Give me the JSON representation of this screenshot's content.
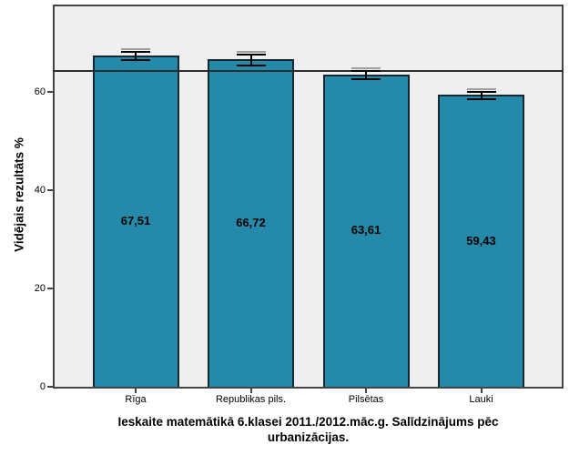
{
  "chart_data": {
    "type": "bar",
    "categories": [
      "Rīga",
      "Republikas pils.",
      "Pilsētas",
      "Lauki"
    ],
    "values": [
      67.51,
      66.72,
      63.61,
      59.43
    ],
    "value_labels": [
      "67,51",
      "66,72",
      "63,61",
      "59,43"
    ],
    "error_bars": [
      0.9,
      1.2,
      0.9,
      0.8
    ],
    "reference_line": 64.3,
    "title": "Ieskaite matemātikā 6.klasei 2011./2012.māc.g. Salīdzinājums pēc urbanizācijas.",
    "title_lines": [
      "Ieskaite matemātikā 6.klasei 2011./2012.māc.g. Salīdzinājums pēc",
      "urbanizācijas."
    ],
    "xlabel": "",
    "ylabel": "Vidējais rezultāts %",
    "yticks": [
      0,
      20,
      40,
      60
    ],
    "ytick_labels": [
      "0",
      "20",
      "40",
      "60"
    ],
    "ylim": [
      0,
      77.5
    ],
    "grid": false,
    "legend": "none",
    "colors": {
      "bar_fill": "#2589A9",
      "bar_border": "#17262E",
      "plot_bg": "#EFEFEF",
      "page_bg": "#FFFFFF",
      "axis": "#444444",
      "reference_line": "#2E2E2E",
      "error_bar": "#000000",
      "error_bar_shadow": "#9E9E9E",
      "text": "#000000"
    }
  }
}
